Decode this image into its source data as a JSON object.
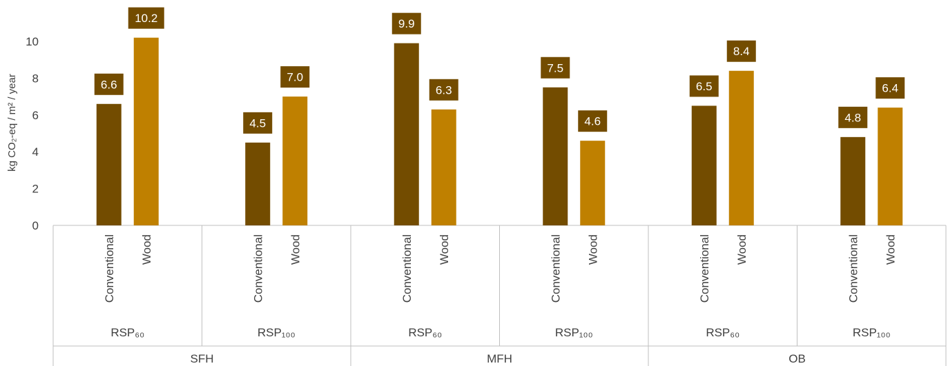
{
  "chart_data": {
    "type": "bar",
    "title": "",
    "ylabel": "kg CO₂-eq / m² / year",
    "ylim": [
      0,
      10
    ],
    "yticks": [
      0,
      2,
      4,
      6,
      8,
      10
    ],
    "grid": false,
    "groups": [
      {
        "label": "SFH",
        "subgroups": [
          {
            "label": "RSP₆₀",
            "bars": [
              {
                "category": "Conventional",
                "value": 6.6,
                "label": "6.6"
              },
              {
                "category": "Wood",
                "value": 10.2,
                "label": "10.2"
              }
            ]
          },
          {
            "label": "RSP₁₀₀",
            "bars": [
              {
                "category": "Conventional",
                "value": 4.5,
                "label": "4.5"
              },
              {
                "category": "Wood",
                "value": 7.0,
                "label": "7.0"
              }
            ]
          }
        ]
      },
      {
        "label": "MFH",
        "subgroups": [
          {
            "label": "RSP₆₀",
            "bars": [
              {
                "category": "Conventional",
                "value": 9.9,
                "label": "9.9"
              },
              {
                "category": "Wood",
                "value": 6.3,
                "label": "6.3"
              }
            ]
          },
          {
            "label": "RSP₁₀₀",
            "bars": [
              {
                "category": "Conventional",
                "value": 7.5,
                "label": "7.5"
              },
              {
                "category": "Wood",
                "value": 4.6,
                "label": "4.6"
              }
            ]
          }
        ]
      },
      {
        "label": "OB",
        "subgroups": [
          {
            "label": "RSP₆₀",
            "bars": [
              {
                "category": "Conventional",
                "value": 6.5,
                "label": "6.5"
              },
              {
                "category": "Wood",
                "value": 8.4,
                "label": "8.4"
              }
            ]
          },
          {
            "label": "RSP₁₀₀",
            "bars": [
              {
                "category": "Conventional",
                "value": 4.8,
                "label": "4.8"
              },
              {
                "category": "Wood",
                "value": 6.4,
                "label": "6.4"
              }
            ]
          }
        ]
      }
    ],
    "colors": {
      "Conventional": "#734c00",
      "Wood": "#bf8000",
      "label_box": "#734c00",
      "axis": "#bfbfbf",
      "text": "#404040"
    }
  }
}
